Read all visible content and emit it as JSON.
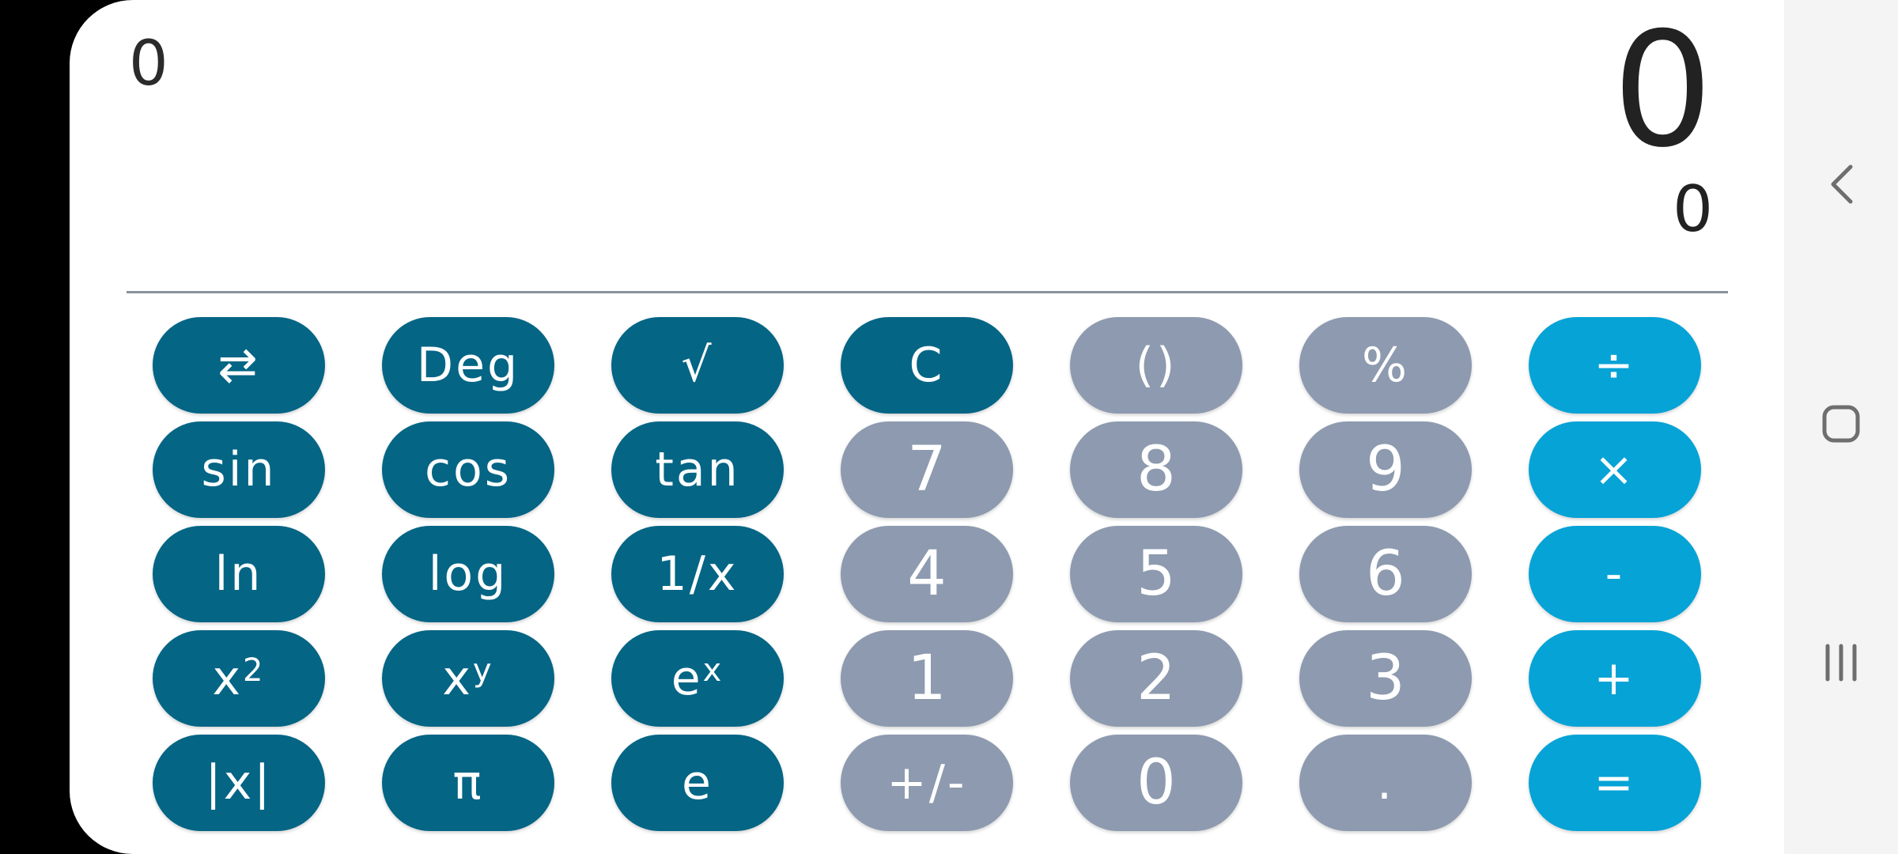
{
  "display": {
    "history": "0",
    "main": "0",
    "sub": "0"
  },
  "colors": {
    "function_key": "#046585",
    "number_key": "#8d9aaf",
    "operator_key": "#06a3d6",
    "divider": "#8a939d"
  },
  "keys": {
    "swap": "⇄",
    "deg": "Deg",
    "sqrt": "√",
    "clear": "C",
    "parens": "()",
    "percent": "%",
    "divide": "÷",
    "sin": "sin",
    "cos": "cos",
    "tan": "tan",
    "seven": "7",
    "eight": "8",
    "nine": "9",
    "multiply": "×",
    "ln": "ln",
    "log": "log",
    "reciprocal": "1/x",
    "four": "4",
    "five": "5",
    "six": "6",
    "minus": "-",
    "square_base": "x",
    "square_exp": "2",
    "power_base": "x",
    "power_exp": "y",
    "exp_base": "e",
    "exp_exp": "x",
    "one": "1",
    "two": "2",
    "three": "3",
    "plus": "+",
    "abs": "|x|",
    "pi": "π",
    "e": "e",
    "negate": "+/-",
    "zero": "0",
    "decimal": ".",
    "equals": "="
  },
  "nav": {
    "back_icon": "chevron-left-icon",
    "home_icon": "rounded-square-icon",
    "recents_icon": "three-bars-icon"
  }
}
